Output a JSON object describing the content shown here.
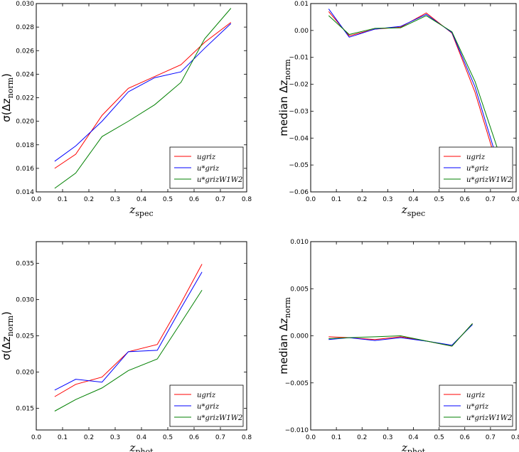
{
  "colors": {
    "ugriz": "#ff0000",
    "ustar_griz": "#0000ff",
    "ustar_grizW1W2": "#008000"
  },
  "chart_data": [
    {
      "type": "line",
      "id": "top-left",
      "xlabel": "z",
      "xlabel_sub": "spec",
      "ylabel": "σ(Δz",
      "ylabel_sub": "norm",
      "ylabel_end": ")",
      "xlim": [
        0.0,
        0.8
      ],
      "ylim": [
        0.014,
        0.03
      ],
      "xticks": [
        "0.0",
        "0.1",
        "0.2",
        "0.3",
        "0.4",
        "0.5",
        "0.6",
        "0.7",
        "0.8"
      ],
      "yticks": [
        "0.014",
        "0.016",
        "0.018",
        "0.020",
        "0.022",
        "0.024",
        "0.026",
        "0.028",
        "0.030"
      ],
      "legend": "lower-right",
      "series": [
        {
          "name": "ugriz",
          "label": "ugriz",
          "color": "#ff0000",
          "x": [
            0.07,
            0.15,
            0.25,
            0.35,
            0.45,
            0.55,
            0.64,
            0.74
          ],
          "y": [
            0.016,
            0.0172,
            0.0205,
            0.0228,
            0.0238,
            0.0248,
            0.0267,
            0.0284
          ]
        },
        {
          "name": "u*griz",
          "label": "u*griz",
          "color": "#0000ff",
          "x": [
            0.07,
            0.15,
            0.25,
            0.35,
            0.45,
            0.55,
            0.64,
            0.74
          ],
          "y": [
            0.0166,
            0.0179,
            0.02,
            0.0225,
            0.0237,
            0.0242,
            0.0262,
            0.0283
          ]
        },
        {
          "name": "u*grizW1W2",
          "label": "u*grizW1W2",
          "color": "#008000",
          "x": [
            0.07,
            0.15,
            0.25,
            0.35,
            0.45,
            0.55,
            0.64,
            0.74
          ],
          "y": [
            0.0143,
            0.0156,
            0.0187,
            0.02,
            0.0214,
            0.0233,
            0.027,
            0.0296
          ]
        }
      ]
    },
    {
      "type": "line",
      "id": "top-right",
      "xlabel": "z",
      "xlabel_sub": "spec",
      "ylabel": "median Δz",
      "ylabel_sub": "norm",
      "ylabel_end": "",
      "xlim": [
        0.0,
        0.8
      ],
      "ylim": [
        -0.06,
        0.01
      ],
      "xticks": [
        "0.0",
        "0.1",
        "0.2",
        "0.3",
        "0.4",
        "0.5",
        "0.6",
        "0.7",
        "0.8"
      ],
      "yticks": [
        "−0.06",
        "−0.05",
        "−0.04",
        "−0.03",
        "−0.02",
        "−0.01",
        "0.00",
        "0.01"
      ],
      "legend": "lower-right",
      "series": [
        {
          "name": "ugriz",
          "label": "ugriz",
          "color": "#ff0000",
          "x": [
            0.07,
            0.15,
            0.25,
            0.35,
            0.45,
            0.55,
            0.64,
            0.74
          ],
          "y": [
            0.007,
            -0.002,
            0.0005,
            0.0012,
            0.0065,
            -0.001,
            -0.023,
            -0.0545
          ]
        },
        {
          "name": "u*griz",
          "label": "u*griz",
          "color": "#0000ff",
          "x": [
            0.07,
            0.15,
            0.25,
            0.35,
            0.45,
            0.55,
            0.64,
            0.74
          ],
          "y": [
            0.008,
            -0.0025,
            0.0005,
            0.0015,
            0.006,
            -0.0008,
            -0.021,
            -0.0525
          ]
        },
        {
          "name": "u*grizW1W2",
          "label": "u*grizW1W2",
          "color": "#008000",
          "x": [
            0.07,
            0.15,
            0.25,
            0.35,
            0.45,
            0.55,
            0.64,
            0.74
          ],
          "y": [
            0.0055,
            -0.0015,
            0.0008,
            0.001,
            0.0055,
            -0.0005,
            -0.019,
            -0.0475
          ]
        }
      ]
    },
    {
      "type": "line",
      "id": "bottom-left",
      "xlabel": "z",
      "xlabel_sub": "phot",
      "ylabel": "σ(Δz",
      "ylabel_sub": "norm",
      "ylabel_end": ")",
      "xlim": [
        0.0,
        0.8
      ],
      "ylim": [
        0.012,
        0.038
      ],
      "xticks": [
        "0.0",
        "0.1",
        "0.2",
        "0.3",
        "0.4",
        "0.5",
        "0.6",
        "0.7",
        "0.8"
      ],
      "ytick_values": [
        0.015,
        0.02,
        0.025,
        0.03,
        0.035
      ],
      "yticks": [
        "0.015",
        "0.020",
        "0.025",
        "0.030",
        "0.035"
      ],
      "legend": "lower-right",
      "series": [
        {
          "name": "ugriz",
          "label": "ugriz",
          "color": "#ff0000",
          "x": [
            0.07,
            0.15,
            0.25,
            0.35,
            0.46,
            0.55,
            0.63
          ],
          "y": [
            0.0166,
            0.0183,
            0.0193,
            0.0228,
            0.0238,
            0.0295,
            0.0349
          ]
        },
        {
          "name": "u*griz",
          "label": "u*griz",
          "color": "#0000ff",
          "x": [
            0.07,
            0.15,
            0.25,
            0.35,
            0.46,
            0.55,
            0.63
          ],
          "y": [
            0.0175,
            0.019,
            0.0186,
            0.0228,
            0.023,
            0.0288,
            0.0338
          ]
        },
        {
          "name": "u*grizW1W2",
          "label": "u*grizW1W2",
          "color": "#008000",
          "x": [
            0.07,
            0.15,
            0.25,
            0.35,
            0.46,
            0.55,
            0.63
          ],
          "y": [
            0.0146,
            0.0162,
            0.0178,
            0.0202,
            0.0218,
            0.0268,
            0.0313
          ]
        }
      ]
    },
    {
      "type": "line",
      "id": "bottom-right",
      "xlabel": "z",
      "xlabel_sub": "phot",
      "ylabel": "median Δz",
      "ylabel_sub": "norm",
      "ylabel_end": "",
      "xlim": [
        0.0,
        0.8
      ],
      "ylim": [
        -0.01,
        0.01
      ],
      "xticks": [
        "0.0",
        "0.1",
        "0.2",
        "0.3",
        "0.4",
        "0.5",
        "0.6",
        "0.7",
        "0.8"
      ],
      "ytick_values": [
        -0.01,
        -0.005,
        0.0,
        0.005,
        0.01
      ],
      "yticks": [
        "−0.010",
        "−0.005",
        "0.000",
        "0.005",
        "0.010"
      ],
      "legend": "lower-right",
      "series": [
        {
          "name": "ugriz",
          "label": "ugriz",
          "color": "#ff0000",
          "x": [
            0.07,
            0.15,
            0.25,
            0.35,
            0.46,
            0.55,
            0.63
          ],
          "y": [
            -0.0001,
            -0.0002,
            -0.0004,
            -0.0001,
            -0.0006,
            -0.0011,
            0.0013
          ]
        },
        {
          "name": "u*griz",
          "label": "u*griz",
          "color": "#0000ff",
          "x": [
            0.07,
            0.15,
            0.25,
            0.35,
            0.46,
            0.55,
            0.63
          ],
          "y": [
            -0.0004,
            -0.0002,
            -0.0005,
            -0.0002,
            -0.0006,
            -0.001,
            0.0012
          ]
        },
        {
          "name": "u*grizW1W2",
          "label": "u*grizW1W2",
          "color": "#008000",
          "x": [
            0.07,
            0.15,
            0.25,
            0.35,
            0.46,
            0.55,
            0.63
          ],
          "y": [
            -0.0003,
            -0.0002,
            -0.0001,
            0.0,
            -0.0006,
            -0.0011,
            0.0013
          ]
        }
      ]
    }
  ]
}
